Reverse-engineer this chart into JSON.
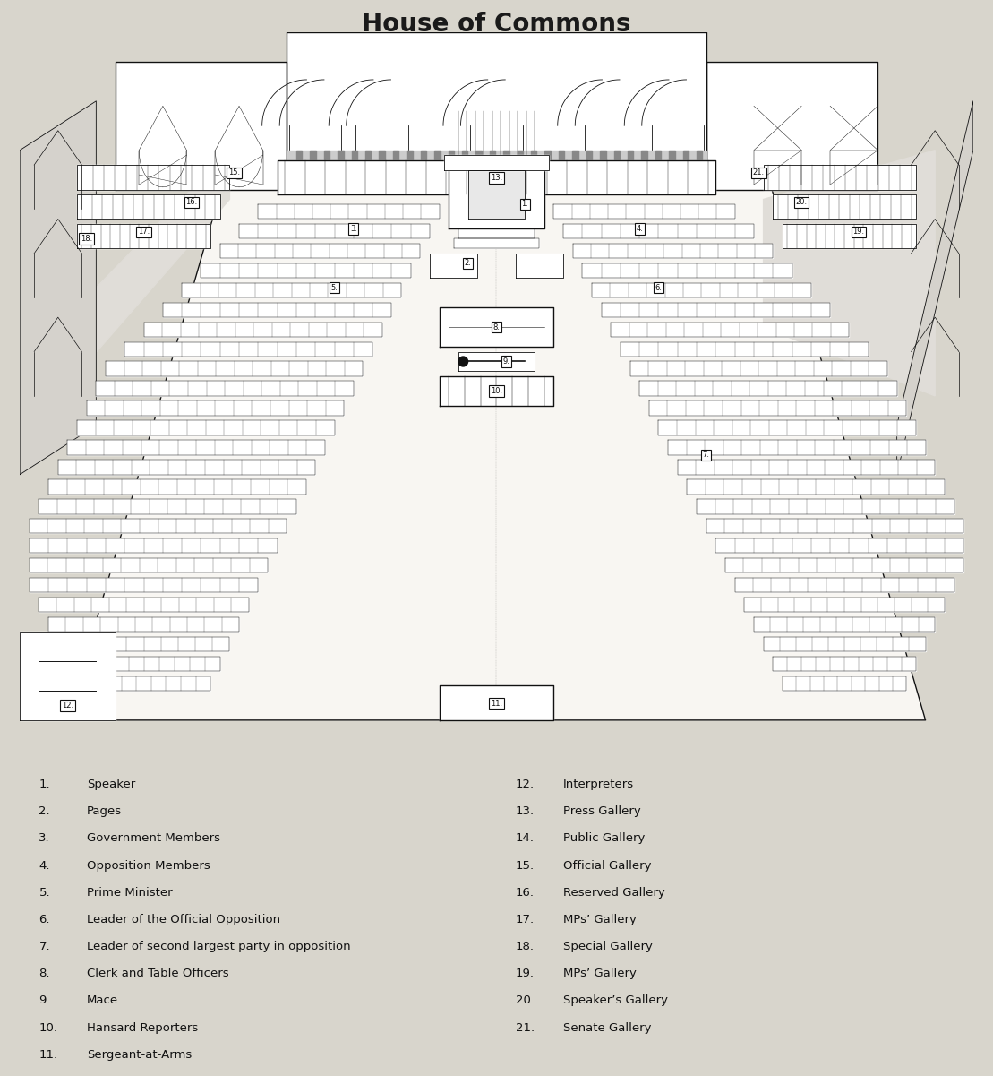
{
  "title": "House of Commons",
  "title_fontsize": 20,
  "title_fontweight": "bold",
  "title_color": "#1a1a1a",
  "bg_color": "#d8d5cc",
  "diagram_bg": "#f0ede8",
  "line_color": "#111111",
  "white": "#ffffff",
  "light_gray": "#cccccc",
  "legend_left": [
    [
      "1.",
      "Speaker"
    ],
    [
      "2.",
      "Pages"
    ],
    [
      "3.",
      "Government Members"
    ],
    [
      "4.",
      "Opposition Members"
    ],
    [
      "5.",
      "Prime Minister"
    ],
    [
      "6.",
      "Leader of the Official Opposition"
    ],
    [
      "7.",
      "Leader of second largest party in opposition"
    ],
    [
      "8.",
      "Clerk and Table Officers"
    ],
    [
      "9.",
      "Mace"
    ],
    [
      "10.",
      "Hansard Reporters"
    ],
    [
      "11.",
      "Sergeant-at-Arms"
    ]
  ],
  "legend_right": [
    [
      "12.",
      "Interpreters"
    ],
    [
      "13.",
      "Press Gallery"
    ],
    [
      "14.",
      "Public Gallery"
    ],
    [
      "15.",
      "Official Gallery"
    ],
    [
      "16.",
      "Reserved Gallery"
    ],
    [
      "17.",
      "MPs’ Gallery"
    ],
    [
      "18.",
      "Special Gallery"
    ],
    [
      "19.",
      "MPs’ Gallery"
    ],
    [
      "20.",
      "Speaker’s Gallery"
    ],
    [
      "21.",
      "Senate Gallery"
    ]
  ]
}
